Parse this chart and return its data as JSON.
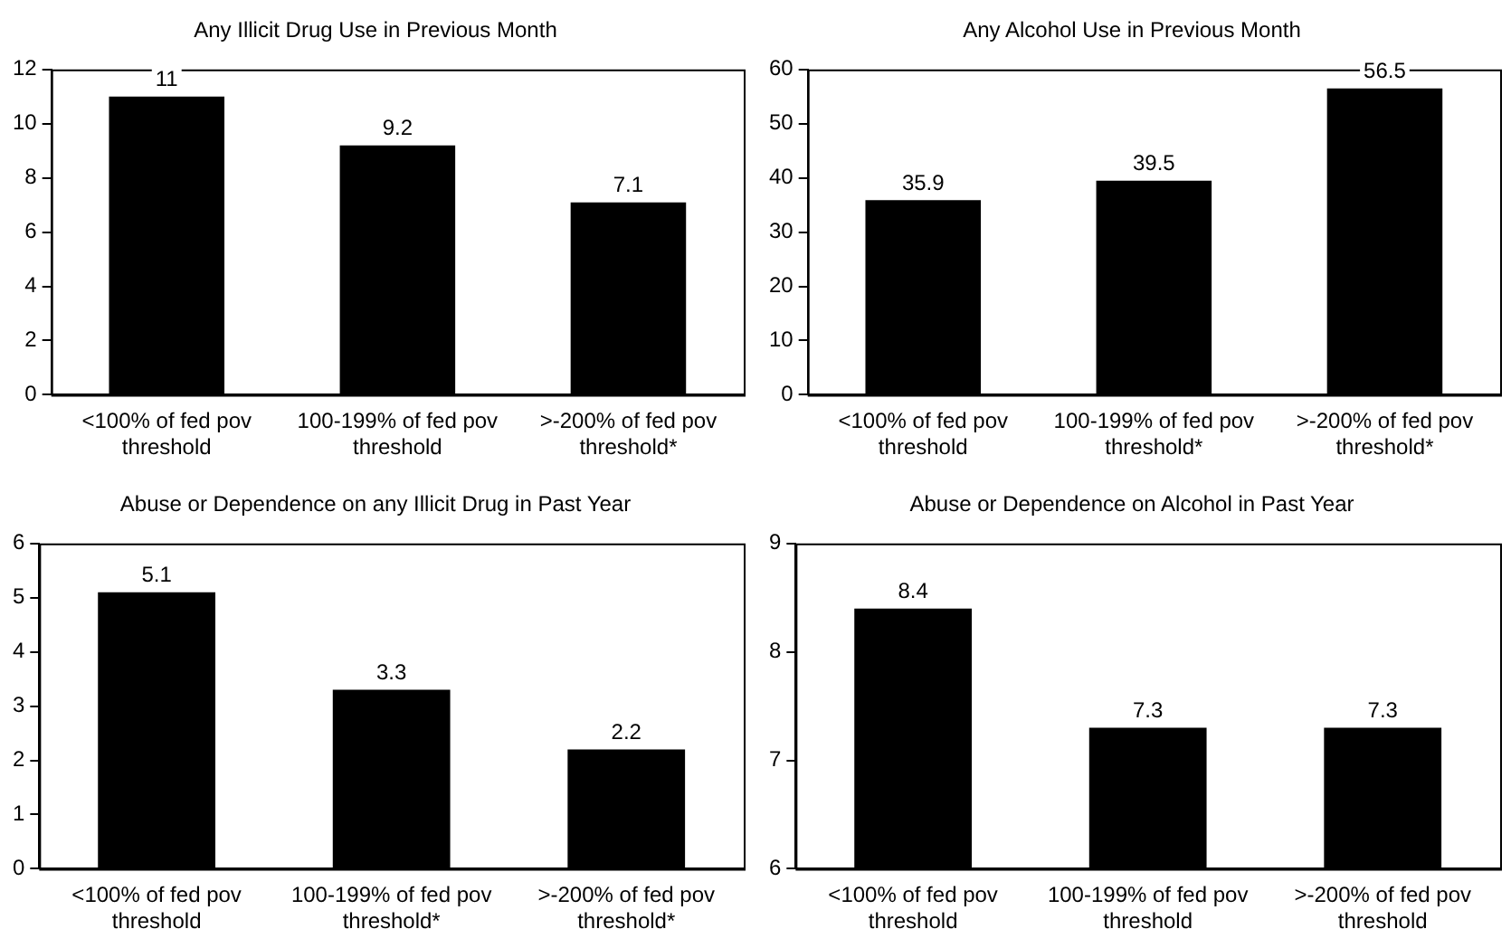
{
  "chart_data": [
    {
      "type": "bar",
      "title": "Any Illicit Drug Use in Previous Month",
      "categories": [
        "<100% of fed pov threshold",
        "100-199% of fed pov threshold",
        ">-200% of fed pov threshold*"
      ],
      "values": [
        11,
        9.2,
        7.1
      ],
      "color": "#000000",
      "ylim": [
        0,
        12
      ],
      "yticks": [
        0,
        2,
        4,
        6,
        8,
        10,
        12
      ],
      "grid": false,
      "data_labels": true
    },
    {
      "type": "bar",
      "title": "Any Alcohol Use in Previous Month",
      "categories": [
        "<100% of fed pov threshold",
        "100-199% of fed pov threshold*",
        ">-200% of fed pov threshold*"
      ],
      "values": [
        35.9,
        39.5,
        56.5
      ],
      "color": "#000000",
      "ylim": [
        0,
        60
      ],
      "yticks": [
        0,
        10,
        20,
        30,
        40,
        50,
        60
      ],
      "grid": false,
      "data_labels": true
    },
    {
      "type": "bar",
      "title": "Abuse or Dependence on any Illicit Drug in Past Year",
      "categories": [
        "<100% of fed pov threshold",
        "100-199% of fed pov threshold*",
        ">-200% of fed pov threshold*"
      ],
      "values": [
        5.1,
        3.3,
        2.2
      ],
      "color": "#000000",
      "ylim": [
        0,
        6
      ],
      "yticks": [
        0,
        1,
        2,
        3,
        4,
        5,
        6
      ],
      "grid": false,
      "data_labels": true
    },
    {
      "type": "bar",
      "title": "Abuse or Dependence on Alcohol in Past Year",
      "categories": [
        "<100% of fed pov threshold",
        "100-199% of fed pov threshold",
        ">-200% of fed pov threshold"
      ],
      "values": [
        8.4,
        7.3,
        7.3
      ],
      "color": "#000000",
      "ylim": [
        6,
        9
      ],
      "yticks": [
        6,
        7,
        8,
        9
      ],
      "grid": false,
      "data_labels": true
    }
  ]
}
